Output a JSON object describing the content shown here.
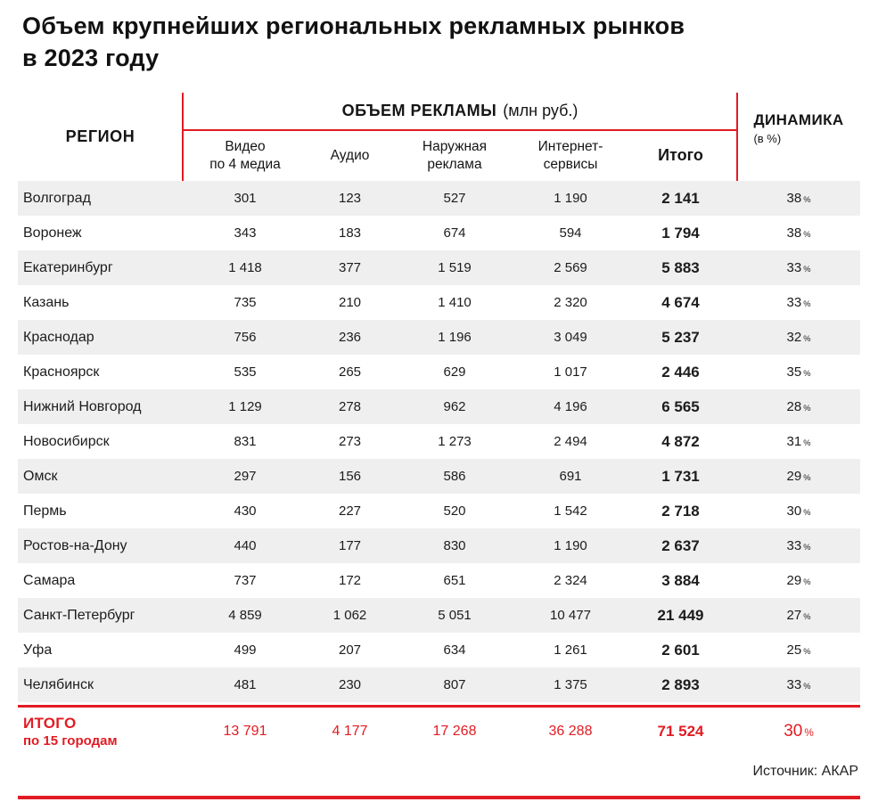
{
  "title": "Объем крупнейших региональных рекламных рынков\nв 2023 году",
  "header": {
    "region": "РЕГИОН",
    "group_title": "ОБЪЕМ РЕКЛАМЫ",
    "group_unit": "(млн руб.)",
    "columns": [
      "Видео\nпо 4 медиа",
      "Аудио",
      "Наружная\nреклама",
      "Интернет-\nсервисы",
      "Итого"
    ],
    "dynamics": "ДИНАМИКА",
    "dynamics_unit": "(в %)"
  },
  "labels": {
    "percent": "%"
  },
  "chart_data": {
    "type": "table",
    "title": "Объем крупнейших региональных рекламных рынков в 2023 году",
    "unit": "млн руб.",
    "columns": [
      "Регион",
      "Видео по 4 медиа",
      "Аудио",
      "Наружная реклама",
      "Интернет-сервисы",
      "Итого",
      "Динамика (в %)"
    ],
    "rows": [
      {
        "region": "Волгоград",
        "values": [
          "301",
          "123",
          "527",
          "1 190",
          "2 141"
        ],
        "dynamics": "38"
      },
      {
        "region": "Воронеж",
        "values": [
          "343",
          "183",
          "674",
          "594",
          "1 794"
        ],
        "dynamics": "38"
      },
      {
        "region": "Екатеринбург",
        "values": [
          "1 418",
          "377",
          "1 519",
          "2 569",
          "5 883"
        ],
        "dynamics": "33"
      },
      {
        "region": "Казань",
        "values": [
          "735",
          "210",
          "1 410",
          "2 320",
          "4 674"
        ],
        "dynamics": "33"
      },
      {
        "region": "Краснодар",
        "values": [
          "756",
          "236",
          "1 196",
          "3 049",
          "5 237"
        ],
        "dynamics": "32"
      },
      {
        "region": "Красноярск",
        "values": [
          "535",
          "265",
          "629",
          "1 017",
          "2 446"
        ],
        "dynamics": "35"
      },
      {
        "region": "Нижний Новгород",
        "values": [
          "1 129",
          "278",
          "962",
          "4 196",
          "6 565"
        ],
        "dynamics": "28"
      },
      {
        "region": "Новосибирск",
        "values": [
          "831",
          "273",
          "1 273",
          "2 494",
          "4 872"
        ],
        "dynamics": "31"
      },
      {
        "region": "Омск",
        "values": [
          "297",
          "156",
          "586",
          "691",
          "1 731"
        ],
        "dynamics": "29"
      },
      {
        "region": "Пермь",
        "values": [
          "430",
          "227",
          "520",
          "1 542",
          "2 718"
        ],
        "dynamics": "30"
      },
      {
        "region": "Ростов-на-Дону",
        "values": [
          "440",
          "177",
          "830",
          "1 190",
          "2 637"
        ],
        "dynamics": "33"
      },
      {
        "region": "Самара",
        "values": [
          "737",
          "172",
          "651",
          "2 324",
          "3 884"
        ],
        "dynamics": "29"
      },
      {
        "region": "Санкт-Петербург",
        "values": [
          "4 859",
          "1 062",
          "5 051",
          "10 477",
          "21 449"
        ],
        "dynamics": "27"
      },
      {
        "region": "Уфа",
        "values": [
          "499",
          "207",
          "634",
          "1 261",
          "2 601"
        ],
        "dynamics": "25"
      },
      {
        "region": "Челябинск",
        "values": [
          "481",
          "230",
          "807",
          "1 375",
          "2 893"
        ],
        "dynamics": "33"
      }
    ],
    "total": {
      "label": "ИТОГО",
      "sublabel": "по 15 городам",
      "values": [
        "13 791",
        "4 177",
        "17 268",
        "36 288",
        "71 524"
      ],
      "dynamics": "30"
    }
  },
  "source": "Источник: АКАР",
  "colors": {
    "accent": "#e21b23",
    "stripe": "#efefef"
  }
}
